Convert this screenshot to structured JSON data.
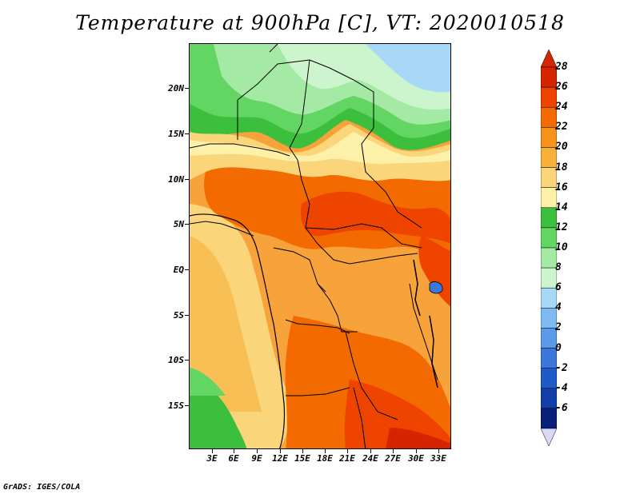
{
  "title": "Temperature at 900hPa [C], VT: 2020010518",
  "credit": "GrADS: IGES/COLA",
  "map": {
    "variable": "Temperature at 900hPa",
    "unit": "C",
    "valid_time": "2020010518",
    "lat_ticks": [
      "20N",
      "15N",
      "10N",
      "5N",
      "EQ",
      "5S",
      "10S",
      "15S"
    ],
    "lon_ticks": [
      "3E",
      "6E",
      "9E",
      "12E",
      "15E",
      "18E",
      "21E",
      "24E",
      "27E",
      "30E",
      "33E"
    ]
  },
  "colorbar": {
    "labels": [
      "28",
      "26",
      "24",
      "22",
      "20",
      "18",
      "16",
      "14",
      "12",
      "10",
      "8",
      "6",
      "4",
      "2",
      "0",
      "-2",
      "-4",
      "-6"
    ],
    "colors": [
      "#d42500",
      "#ee4400",
      "#f26a00",
      "#f7921a",
      "#f7b03a",
      "#fbd57a",
      "#fdf0a8",
      "#3cbf3c",
      "#63d563",
      "#a4e9a4",
      "#cdf5cd",
      "#a8d8f8",
      "#7fbaf3",
      "#5a9ae8",
      "#3b78da",
      "#1f5ac9",
      "#123ea8",
      "#0a1f7a"
    ],
    "top_arrow_color": "#d42500",
    "bottom_arrow_color": "#d8d8f8"
  }
}
